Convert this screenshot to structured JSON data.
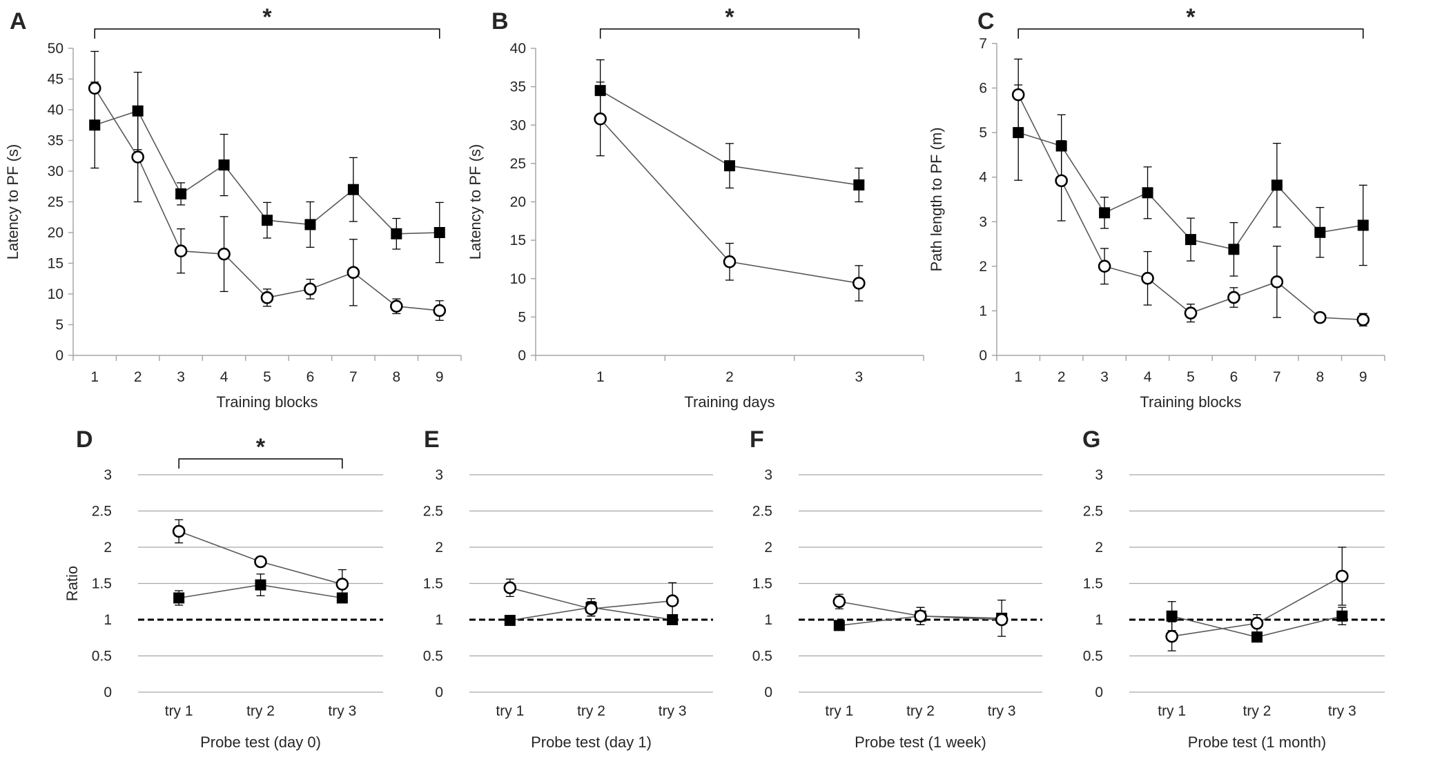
{
  "figure": {
    "line_color": "#595959",
    "marker_color": "#000000",
    "grid_color": "#a6a6a6",
    "text_color": "#262626"
  },
  "chart_data": [
    {
      "id": "A",
      "panel_label": "A",
      "type": "line",
      "xlabel": "Training blocks",
      "ylabel": "Latency to PF (s)",
      "ylim": [
        0,
        50
      ],
      "yticks": [
        0,
        5,
        10,
        15,
        20,
        25,
        30,
        35,
        40,
        45,
        50
      ],
      "categories": [
        "1",
        "2",
        "3",
        "4",
        "5",
        "6",
        "7",
        "8",
        "9"
      ],
      "grid": false,
      "reference_line": null,
      "significance": {
        "from": "1",
        "to": "9",
        "label": "*"
      },
      "series": [
        {
          "name": "filled squares",
          "marker": "square",
          "values": [
            37.5,
            39.8,
            26.3,
            31.0,
            22.0,
            21.3,
            27.0,
            19.8,
            20.0
          ],
          "errors": [
            7.0,
            6.3,
            1.8,
            5.0,
            2.9,
            3.7,
            5.2,
            2.5,
            4.9
          ]
        },
        {
          "name": "open circles",
          "marker": "circle",
          "values": [
            43.5,
            32.3,
            17.0,
            16.5,
            9.4,
            10.8,
            13.5,
            8.0,
            7.3
          ],
          "errors": [
            6.0,
            7.3,
            3.6,
            6.1,
            1.4,
            1.6,
            5.4,
            1.2,
            1.6
          ]
        }
      ]
    },
    {
      "id": "B",
      "panel_label": "B",
      "type": "line",
      "xlabel": "Training days",
      "ylabel": "Latency to PF (s)",
      "ylim": [
        0,
        40
      ],
      "yticks": [
        0,
        5,
        10,
        15,
        20,
        25,
        30,
        35,
        40
      ],
      "categories": [
        "1",
        "2",
        "3"
      ],
      "grid": false,
      "reference_line": null,
      "significance": {
        "from": "1",
        "to": "3",
        "label": "*"
      },
      "series": [
        {
          "name": "filled squares",
          "marker": "square",
          "values": [
            34.5,
            24.7,
            22.2
          ],
          "errors": [
            4.0,
            2.9,
            2.2
          ]
        },
        {
          "name": "open circles",
          "marker": "circle",
          "values": [
            30.8,
            12.2,
            9.4
          ],
          "errors": [
            4.8,
            2.4,
            2.3
          ]
        }
      ]
    },
    {
      "id": "C",
      "panel_label": "C",
      "type": "line",
      "xlabel": "Training blocks",
      "ylabel": "Path length to PF (m)",
      "ylim": [
        0,
        7
      ],
      "yticks": [
        0,
        1,
        2,
        3,
        4,
        5,
        6,
        7
      ],
      "categories": [
        "1",
        "2",
        "3",
        "4",
        "5",
        "6",
        "7",
        "8",
        "9"
      ],
      "grid": false,
      "reference_line": null,
      "significance": {
        "from": "1",
        "to": "9",
        "label": "*"
      },
      "series": [
        {
          "name": "filled squares",
          "marker": "square",
          "values": [
            5.0,
            4.7,
            3.2,
            3.65,
            2.6,
            2.38,
            3.82,
            2.76,
            2.92
          ],
          "errors": [
            1.07,
            0.7,
            0.35,
            0.58,
            0.48,
            0.6,
            0.94,
            0.56,
            0.9
          ]
        },
        {
          "name": "open circles",
          "marker": "circle",
          "values": [
            5.85,
            3.92,
            2.0,
            1.73,
            0.95,
            1.3,
            1.65,
            0.85,
            0.8
          ],
          "errors": [
            0.8,
            0.9,
            0.4,
            0.6,
            0.2,
            0.22,
            0.8,
            0.1,
            0.14
          ]
        }
      ]
    },
    {
      "id": "D",
      "panel_label": "D",
      "type": "line",
      "xlabel": "Probe test (day 0)",
      "ylabel": "Ratio",
      "ylim": [
        0,
        3
      ],
      "yticks": [
        0,
        0.5,
        1,
        1.5,
        2,
        2.5,
        3
      ],
      "categories": [
        "try 1",
        "try 2",
        "try 3"
      ],
      "grid": true,
      "reference_line": 1,
      "significance": {
        "from": "try 1",
        "to": "try 3",
        "label": "*"
      },
      "series": [
        {
          "name": "filled squares",
          "marker": "square",
          "values": [
            1.3,
            1.48,
            1.3
          ],
          "errors": [
            0.1,
            0.15,
            0.05
          ]
        },
        {
          "name": "open circles",
          "marker": "circle",
          "values": [
            2.22,
            1.8,
            1.49
          ],
          "errors": [
            0.16,
            0.06,
            0.2
          ]
        }
      ]
    },
    {
      "id": "E",
      "panel_label": "E",
      "type": "line",
      "xlabel": "Probe test (day 1)",
      "ylabel": "",
      "ylim": [
        0,
        3
      ],
      "yticks": [
        0,
        0.5,
        1,
        1.5,
        2,
        2.5,
        3
      ],
      "categories": [
        "try 1",
        "try 2",
        "try 3"
      ],
      "grid": true,
      "reference_line": 1,
      "significance": null,
      "series": [
        {
          "name": "filled squares",
          "marker": "square",
          "values": [
            0.99,
            1.17,
            1.0
          ],
          "errors": [
            0.02,
            0.12,
            0.05
          ]
        },
        {
          "name": "open circles",
          "marker": "circle",
          "values": [
            1.44,
            1.15,
            1.26
          ],
          "errors": [
            0.12,
            0.1,
            0.25
          ]
        }
      ]
    },
    {
      "id": "F",
      "panel_label": "F",
      "type": "line",
      "xlabel": "Probe test (1 week)",
      "ylabel": "",
      "ylim": [
        0,
        3
      ],
      "yticks": [
        0,
        0.5,
        1,
        1.5,
        2,
        2.5,
        3
      ],
      "categories": [
        "try 1",
        "try 2",
        "try 3"
      ],
      "grid": true,
      "reference_line": 1,
      "significance": null,
      "series": [
        {
          "name": "filled squares",
          "marker": "square",
          "values": [
            0.92,
            1.05,
            1.02
          ],
          "errors": [
            0.03,
            0.12,
            0.25
          ]
        },
        {
          "name": "open circles",
          "marker": "circle",
          "values": [
            1.25,
            1.05,
            1.0
          ],
          "errors": [
            0.1,
            0.12,
            0.05
          ]
        }
      ]
    },
    {
      "id": "G",
      "panel_label": "G",
      "type": "line",
      "xlabel": "Probe test (1 month)",
      "ylabel": "",
      "ylim": [
        0,
        3
      ],
      "yticks": [
        0,
        0.5,
        1,
        1.5,
        2,
        2.5,
        3
      ],
      "categories": [
        "try 1",
        "try 2",
        "try 3"
      ],
      "grid": true,
      "reference_line": 1,
      "significance": null,
      "series": [
        {
          "name": "filled squares",
          "marker": "square",
          "values": [
            1.05,
            0.76,
            1.05
          ],
          "errors": [
            0.2,
            0.05,
            0.12
          ]
        },
        {
          "name": "open circles",
          "marker": "circle",
          "values": [
            0.77,
            0.95,
            1.6
          ],
          "errors": [
            0.2,
            0.12,
            0.4
          ]
        }
      ]
    }
  ]
}
